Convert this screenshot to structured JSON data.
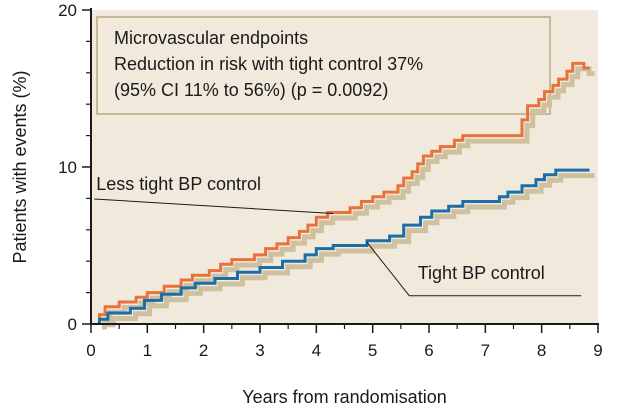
{
  "chart_data": {
    "type": "line",
    "title": "",
    "xlabel": "Years from randomisation",
    "ylabel": "Patients with events (%)",
    "xlim": [
      0,
      9
    ],
    "ylim": [
      0,
      20
    ],
    "xticks": [
      "0",
      "1",
      "2",
      "3",
      "4",
      "5",
      "6",
      "7",
      "8",
      "9"
    ],
    "yticks": [
      "0",
      "10",
      "20"
    ],
    "grid": false,
    "plot_background": "#f1e9dc",
    "annotation": {
      "lines": [
        "Microvascular endpoints",
        "Reduction in risk with tight control 37%",
        "(95% CI 11% to 56%) (p = 0.0092)"
      ],
      "background": "#f1e9dc",
      "border_color": "#c9b79a"
    },
    "series": [
      {
        "name": "Less tight BP control",
        "color": "#e8733a",
        "shadow_color": "#cfc09f",
        "points": [
          [
            0.15,
            0
          ],
          [
            0.15,
            0.6
          ],
          [
            0.25,
            0.6
          ],
          [
            0.25,
            1.1
          ],
          [
            0.5,
            1.1
          ],
          [
            0.5,
            1.4
          ],
          [
            0.8,
            1.4
          ],
          [
            0.8,
            1.7
          ],
          [
            1.0,
            1.7
          ],
          [
            1.0,
            2.0
          ],
          [
            1.3,
            2.0
          ],
          [
            1.3,
            2.4
          ],
          [
            1.6,
            2.4
          ],
          [
            1.6,
            2.8
          ],
          [
            1.8,
            2.8
          ],
          [
            1.8,
            3.1
          ],
          [
            2.1,
            3.1
          ],
          [
            2.1,
            3.4
          ],
          [
            2.3,
            3.4
          ],
          [
            2.3,
            3.8
          ],
          [
            2.5,
            3.8
          ],
          [
            2.5,
            4.1
          ],
          [
            2.9,
            4.1
          ],
          [
            2.9,
            4.4
          ],
          [
            3.1,
            4.4
          ],
          [
            3.1,
            4.8
          ],
          [
            3.3,
            4.8
          ],
          [
            3.3,
            5.1
          ],
          [
            3.5,
            5.1
          ],
          [
            3.5,
            5.5
          ],
          [
            3.7,
            5.5
          ],
          [
            3.7,
            5.9
          ],
          [
            3.85,
            5.9
          ],
          [
            3.85,
            6.3
          ],
          [
            4.0,
            6.3
          ],
          [
            4.0,
            6.8
          ],
          [
            4.2,
            6.8
          ],
          [
            4.2,
            7.1
          ],
          [
            4.6,
            7.1
          ],
          [
            4.6,
            7.4
          ],
          [
            4.8,
            7.4
          ],
          [
            4.8,
            7.8
          ],
          [
            5.0,
            7.8
          ],
          [
            5.0,
            8.1
          ],
          [
            5.2,
            8.1
          ],
          [
            5.2,
            8.4
          ],
          [
            5.45,
            8.4
          ],
          [
            5.45,
            8.8
          ],
          [
            5.55,
            8.8
          ],
          [
            5.55,
            9.3
          ],
          [
            5.7,
            9.3
          ],
          [
            5.7,
            9.7
          ],
          [
            5.8,
            9.7
          ],
          [
            5.8,
            10.2
          ],
          [
            5.9,
            10.2
          ],
          [
            5.9,
            10.7
          ],
          [
            6.05,
            10.7
          ],
          [
            6.05,
            11.0
          ],
          [
            6.2,
            11.0
          ],
          [
            6.2,
            11.3
          ],
          [
            6.45,
            11.3
          ],
          [
            6.45,
            11.7
          ],
          [
            6.6,
            11.7
          ],
          [
            6.6,
            12.0
          ],
          [
            7.65,
            12.0
          ],
          [
            7.65,
            13.0
          ],
          [
            7.75,
            13.0
          ],
          [
            7.75,
            13.9
          ],
          [
            7.95,
            13.9
          ],
          [
            7.95,
            14.3
          ],
          [
            8.05,
            14.3
          ],
          [
            8.05,
            14.8
          ],
          [
            8.2,
            14.8
          ],
          [
            8.2,
            15.2
          ],
          [
            8.3,
            15.2
          ],
          [
            8.3,
            15.6
          ],
          [
            8.45,
            15.6
          ],
          [
            8.45,
            16.1
          ],
          [
            8.55,
            16.1
          ],
          [
            8.55,
            16.6
          ],
          [
            8.75,
            16.6
          ],
          [
            8.75,
            16.3
          ],
          [
            8.85,
            16.3
          ]
        ]
      },
      {
        "name": "Tight BP control",
        "color": "#1b6ea8",
        "shadow_color": "#cfc09f",
        "points": [
          [
            0.15,
            0
          ],
          [
            0.15,
            0.3
          ],
          [
            0.3,
            0.3
          ],
          [
            0.3,
            0.7
          ],
          [
            0.7,
            0.7
          ],
          [
            0.7,
            1.0
          ],
          [
            0.95,
            1.0
          ],
          [
            0.95,
            1.5
          ],
          [
            1.25,
            1.5
          ],
          [
            1.25,
            1.9
          ],
          [
            1.6,
            1.9
          ],
          [
            1.6,
            2.3
          ],
          [
            1.85,
            2.3
          ],
          [
            1.85,
            2.6
          ],
          [
            2.2,
            2.6
          ],
          [
            2.2,
            2.9
          ],
          [
            2.6,
            2.9
          ],
          [
            2.6,
            3.3
          ],
          [
            3.0,
            3.3
          ],
          [
            3.0,
            3.6
          ],
          [
            3.4,
            3.6
          ],
          [
            3.4,
            4.0
          ],
          [
            3.8,
            4.0
          ],
          [
            3.8,
            4.4
          ],
          [
            4.0,
            4.4
          ],
          [
            4.0,
            4.8
          ],
          [
            4.3,
            4.8
          ],
          [
            4.3,
            5.0
          ],
          [
            4.9,
            5.0
          ],
          [
            4.9,
            5.3
          ],
          [
            5.3,
            5.3
          ],
          [
            5.3,
            5.6
          ],
          [
            5.55,
            5.6
          ],
          [
            5.55,
            6.3
          ],
          [
            5.85,
            6.3
          ],
          [
            5.85,
            6.8
          ],
          [
            6.05,
            6.8
          ],
          [
            6.05,
            7.2
          ],
          [
            6.35,
            7.2
          ],
          [
            6.35,
            7.5
          ],
          [
            6.6,
            7.5
          ],
          [
            6.6,
            7.8
          ],
          [
            7.25,
            7.8
          ],
          [
            7.25,
            8.1
          ],
          [
            7.4,
            8.1
          ],
          [
            7.4,
            8.4
          ],
          [
            7.65,
            8.4
          ],
          [
            7.65,
            8.8
          ],
          [
            7.9,
            8.8
          ],
          [
            7.9,
            9.2
          ],
          [
            8.05,
            9.2
          ],
          [
            8.05,
            9.5
          ],
          [
            8.25,
            9.5
          ],
          [
            8.25,
            9.8
          ],
          [
            8.85,
            9.8
          ]
        ]
      }
    ],
    "callouts": [
      {
        "series": "Less tight BP control",
        "text": "Less tight BP control",
        "text_at": [
          0.2,
          8.6
        ],
        "pointer_to": [
          4.3,
          7.1
        ]
      },
      {
        "series": "Tight BP control",
        "text": "Tight BP control",
        "text_at": [
          5.8,
          3.2
        ],
        "pointer_to": [
          4.9,
          5.2
        ],
        "elbow": [
          5.65,
          1.8
        ],
        "tail_to": [
          8.7,
          1.8
        ]
      }
    ]
  }
}
